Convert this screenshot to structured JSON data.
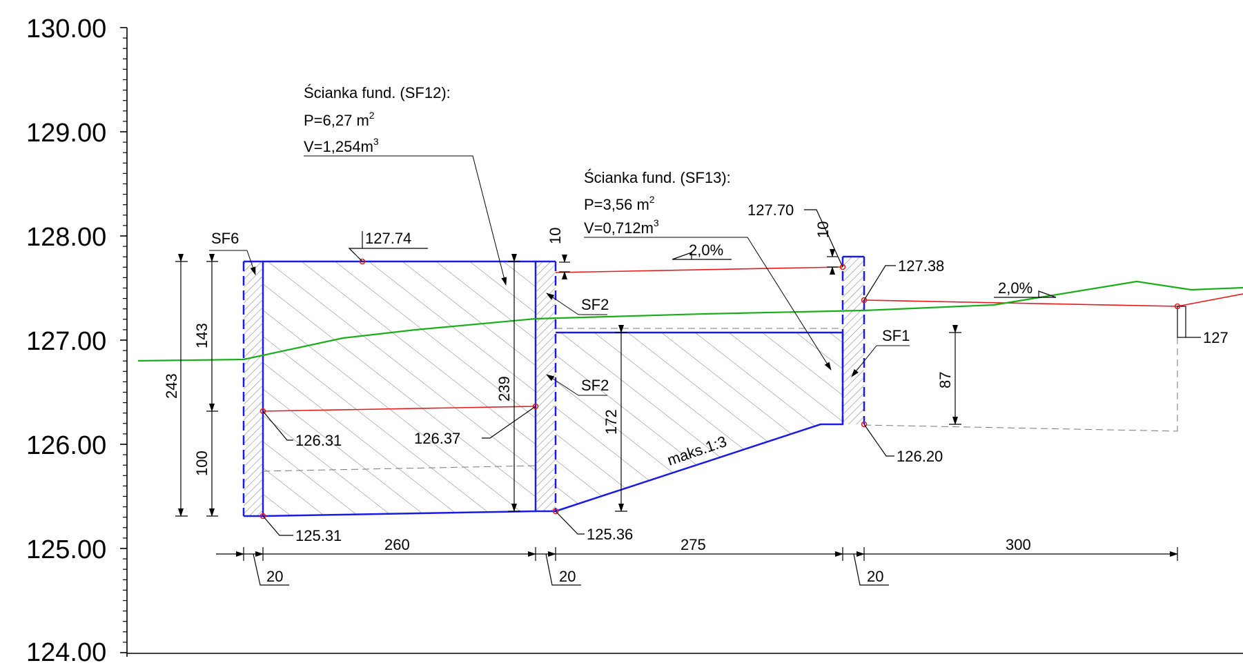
{
  "axis": {
    "y_tick_labels": [
      "130.00",
      "129.00",
      "128.00",
      "127.00",
      "126.00",
      "125.00",
      "124.00"
    ]
  },
  "annotations": {
    "sf12": {
      "title": "Ścianka fund. (SF12):",
      "area": "P=6,27 m",
      "volume": "V=1,254m",
      "sup": "2",
      "sup3": "3"
    },
    "sf13": {
      "title": "Ścianka fund. (SF13):",
      "area": "P=3,56 m",
      "volume": "V=0,712m",
      "sup": "2",
      "sup3": "3"
    }
  },
  "elevations": {
    "e127_74": "127.74",
    "e127_70": "127.70",
    "e127_38": "127.38",
    "e126_31": "126.31",
    "e126_37": "126.37",
    "e126_20": "126.20",
    "e125_31": "125.31",
    "e125_36": "125.36",
    "e127_cut": "127"
  },
  "wall_labels": {
    "sf6": "SF6",
    "sf2_top": "SF2",
    "sf2_bottom": "SF2",
    "sf1": "SF1"
  },
  "slopes": {
    "s1": "2,0%",
    "s2": "2,0%",
    "max": "maks.1:3"
  },
  "dimensions": {
    "d243": "243",
    "d143": "143",
    "d100": "100",
    "d239": "239",
    "d172": "172",
    "d87": "87",
    "d10a": "10",
    "d10b": "10",
    "d260": "260",
    "d275": "275",
    "d300": "300",
    "d20a": "20",
    "d20b": "20",
    "d20c": "20"
  },
  "colors": {
    "structure": "#1a1ae6",
    "design_line": "#e61a1a",
    "terrain": "#1aad1a",
    "lines": "#000000"
  }
}
